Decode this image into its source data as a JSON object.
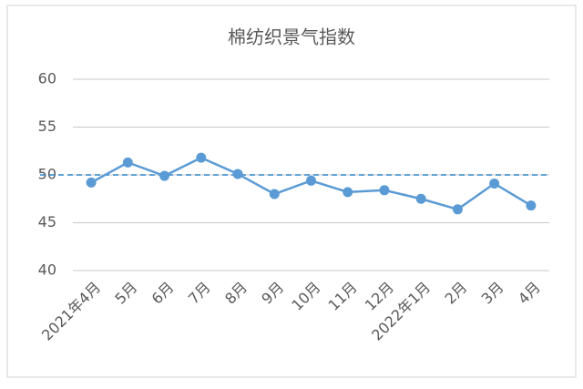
{
  "chart_data": {
    "type": "line",
    "title": "棉纺织景气指数",
    "categories": [
      "2021年4月",
      "5月",
      "6月",
      "7月",
      "8月",
      "9月",
      "10月",
      "11月",
      "12月",
      "2022年1月",
      "2月",
      "3月",
      "4月"
    ],
    "series": [
      {
        "name": "棉纺织景气指数",
        "color": "#5b9bd5",
        "values": [
          49.2,
          51.3,
          49.9,
          51.8,
          50.1,
          48.0,
          49.4,
          48.2,
          48.4,
          47.5,
          46.4,
          49.1,
          46.8
        ]
      }
    ],
    "reference_line": {
      "value": 50,
      "color": "#2e86c8"
    },
    "ylim": [
      40,
      60
    ],
    "yticks": [
      40,
      45,
      50,
      55,
      60
    ],
    "grid": true
  }
}
